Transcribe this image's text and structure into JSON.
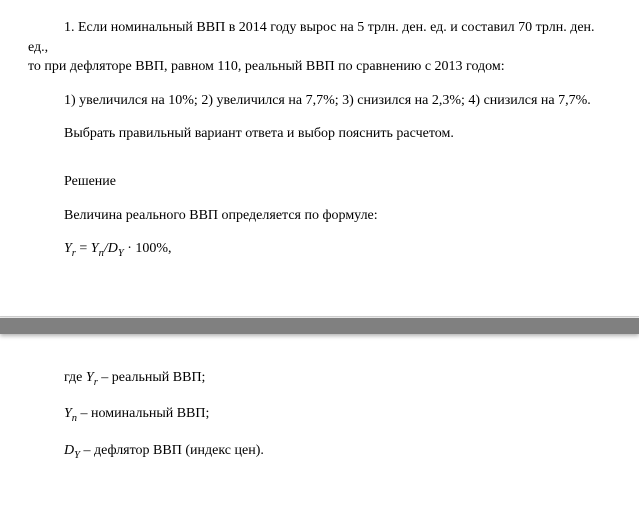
{
  "problem": {
    "number": "1.",
    "text_line1": "Если номинальный ВВП в 2014 году вырос на 5 трлн. ден. ед. и составил 70 трлн. ден. ед.,",
    "text_line2": "то при дефляторе ВВП, равном 110, реальный ВВП по сравнению с 2013 годом:",
    "options": "1) увеличился на 10%; 2) увеличился на 7,7%; 3) снизился на 2,3%; 4) снизился на 7,7%.",
    "instruction": "Выбрать правильный вариант ответа и выбор пояснить расчетом."
  },
  "solution": {
    "heading": "Решение",
    "intro": "Величина реального ВВП определяется по формуле:",
    "formula_yr": "Y",
    "formula_yr_sub": "r",
    "formula_eq": " = ",
    "formula_yn": "Y",
    "formula_yn_sub": "n",
    "formula_slash": "/",
    "formula_dy": "D",
    "formula_dy_sub": "Y",
    "formula_tail": " · 100%,",
    "where": "где ",
    "def_yr_sym": "Y",
    "def_yr_sub": "r",
    "def_yr_text": " – реальный ВВП;",
    "def_yn_sym": "Y",
    "def_yn_sub": "n",
    "def_yn_text": " – номинальный ВВП;",
    "def_dy_sym": "D",
    "def_dy_sub": "Y",
    "def_dy_text": " – дефлятор ВВП (индекс цен)."
  }
}
